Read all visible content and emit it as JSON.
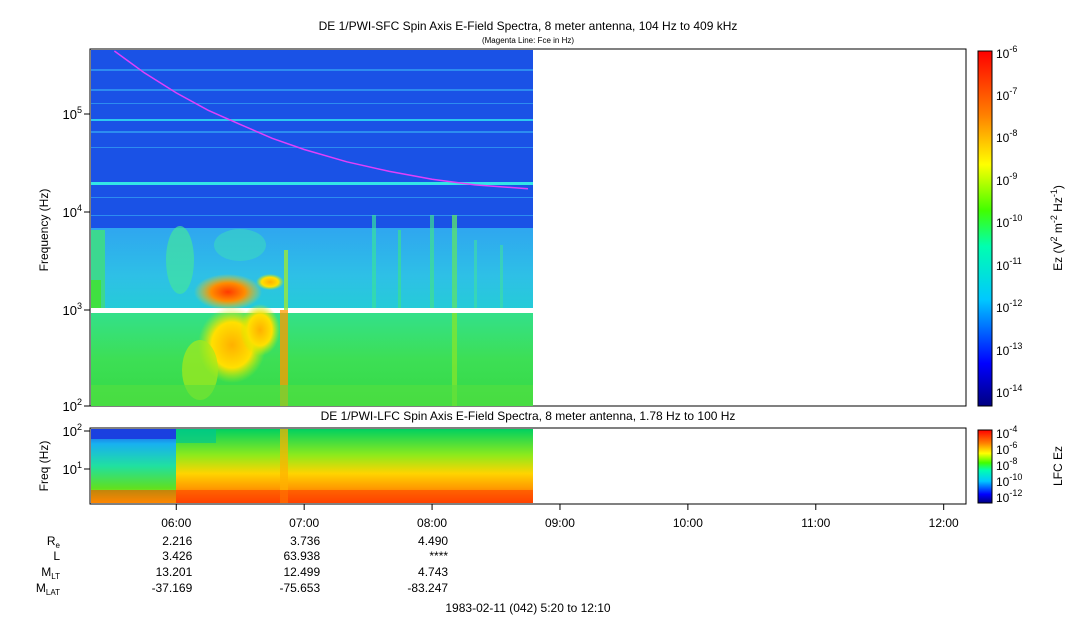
{
  "titles": {
    "top": "DE 1/PWI-SFC  Spin Axis E-Field Spectra, 8 meter antenna, 104 Hz to 409 kHz",
    "top_sub": "(Magenta Line: Fce in Hz)",
    "bottom": "DE 1/PWI-LFC  Spin Axis E-Field Spectra, 8 meter antenna, 1.78 Hz to 100 Hz",
    "footer": "1983-02-11 (042) 5:20 to 12:10"
  },
  "colors": {
    "background_blue": "#1a52e6",
    "magenta_line": "#e040fb",
    "cyan_line": "#33e6e6"
  },
  "chart_data": [
    {
      "type": "heatmap",
      "title": "DE 1/PWI-SFC  Spin Axis E-Field Spectra, 8 meter antenna, 104 Hz to 409 kHz",
      "subtitle": "(Magenta Line: Fce in Hz)",
      "ylabel": "Frequency (Hz)",
      "yscale": "log",
      "ylim": [
        100,
        409000
      ],
      "yticks": [
        "10^2",
        "10^3",
        "10^4",
        "10^5"
      ],
      "xlim": [
        "05:20",
        "12:10"
      ],
      "data_coverage_end": "08:47",
      "colorbar": {
        "label": "Ez (V^2 m^-2 Hz^-1)",
        "scale": "log",
        "ticks": [
          "10^-14",
          "10^-13",
          "10^-12",
          "10^-11",
          "10^-10",
          "10^-9",
          "10^-8",
          "10^-7",
          "10^-6"
        ]
      },
      "fce_line": {
        "name": "Fce in Hz",
        "x": [
          "05:31",
          "05:45",
          "06:00",
          "06:15",
          "06:30",
          "06:45",
          "07:00",
          "07:20",
          "07:40",
          "08:00",
          "08:20",
          "08:45"
        ],
        "y": [
          400000,
          240000,
          150000,
          100000,
          72000,
          52000,
          40000,
          30000,
          24000,
          20000,
          17500,
          16000
        ]
      }
    },
    {
      "type": "heatmap",
      "title": "DE 1/PWI-LFC  Spin Axis E-Field Spectra, 8 meter antenna, 1.78 Hz to 100 Hz",
      "ylabel": "Freq (Hz)",
      "yscale": "log",
      "ylim": [
        1.78,
        100
      ],
      "yticks": [
        "10^1",
        "10^2"
      ],
      "xlim": [
        "05:20",
        "12:10"
      ],
      "xticks": [
        "06:00",
        "07:00",
        "08:00",
        "09:00",
        "10:00",
        "11:00",
        "12:00"
      ],
      "data_coverage_end": "08:47",
      "colorbar": {
        "label": "LFC Ez",
        "scale": "log",
        "ticks": [
          "10^-12",
          "10^-10",
          "10^-8",
          "10^-6",
          "10^-4"
        ]
      }
    }
  ],
  "ephemeris": {
    "labels": {
      "re": "R",
      "re_sub": "e",
      "l": "L",
      "mlt": "M",
      "mlt_sub": "LT",
      "mlat": "M",
      "mlat_sub": "LAT"
    },
    "columns": [
      {
        "time": "06:00",
        "re": "2.216",
        "l": "3.426",
        "mlt": "13.201",
        "mlat": "-37.169"
      },
      {
        "time": "07:00",
        "re": "3.736",
        "l": "63.938",
        "mlt": "12.499",
        "mlat": "-75.653"
      },
      {
        "time": "08:00",
        "re": "4.490",
        "l": "****",
        "mlt": "4.743",
        "mlat": "-83.247"
      }
    ]
  }
}
